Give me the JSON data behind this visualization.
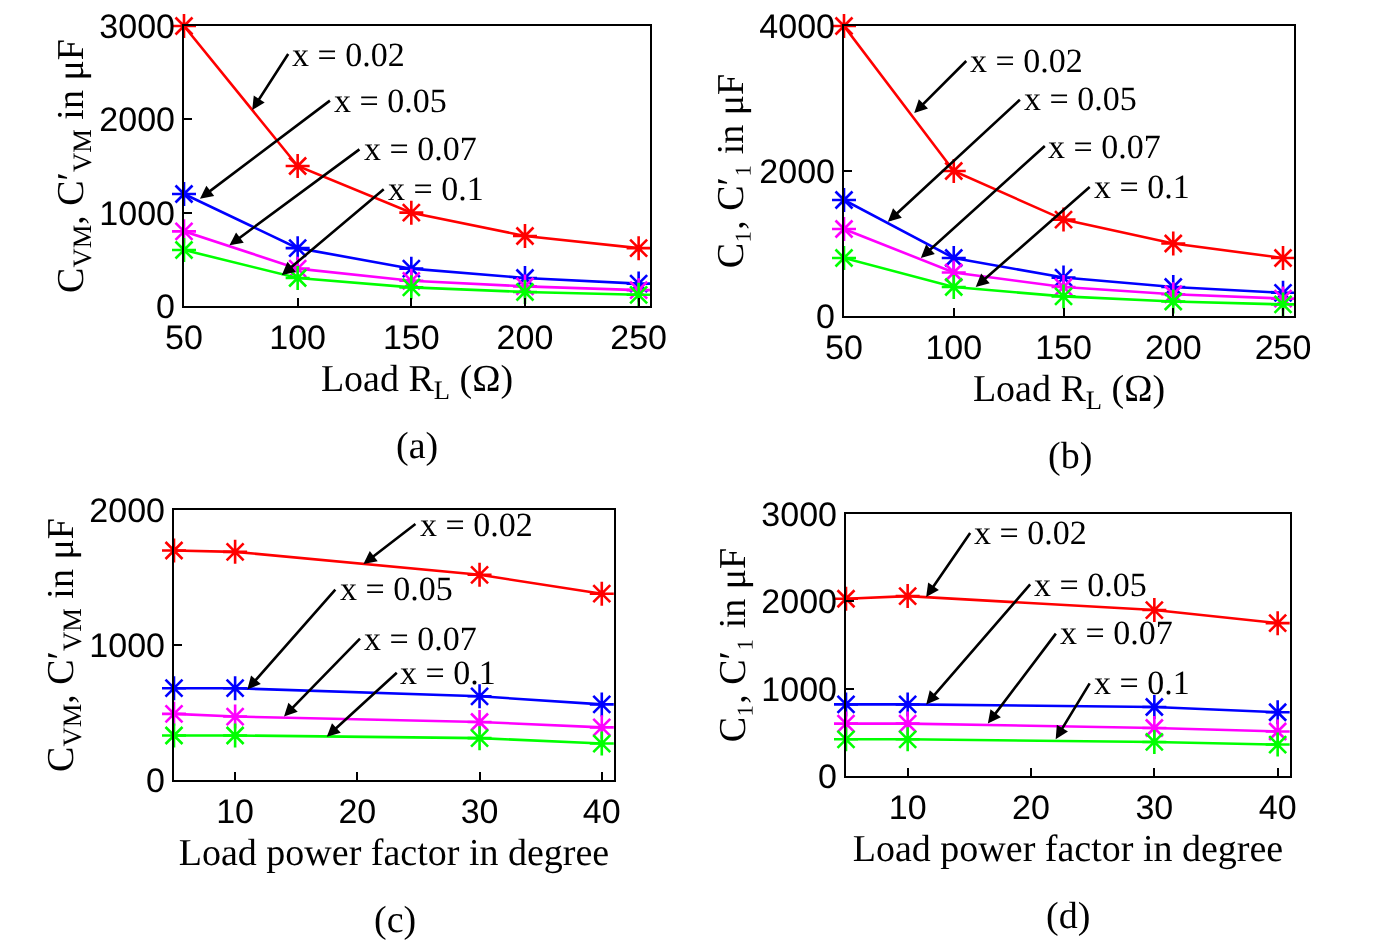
{
  "chart_data": [
    {
      "type": "line",
      "xlabel": "Load R$_{L}$ (Ω)",
      "ylabel": "C$_{VM}$, C′$_{VM}$ in μF",
      "x": [
        50,
        100,
        150,
        200,
        250
      ],
      "xlim": [
        50,
        255
      ],
      "xticks": [
        50,
        100,
        150,
        200,
        250
      ],
      "ylim": [
        0,
        3000
      ],
      "yticks": [
        0,
        1000,
        2000,
        3000
      ],
      "marker": "cross",
      "series": [
        {
          "color": "#ff0000",
          "values": [
            3000,
            1500,
            1000,
            750,
            620
          ]
        },
        {
          "color": "#0000ff",
          "values": [
            1200,
            620,
            400,
            300,
            240
          ]
        },
        {
          "color": "#ff00ff",
          "values": [
            800,
            400,
            270,
            210,
            170
          ]
        },
        {
          "color": "#00ff00",
          "values": [
            600,
            300,
            200,
            150,
            120
          ]
        }
      ],
      "annotations": [
        {
          "text": "x = 0.02",
          "x": 80,
          "y": 2100
        },
        {
          "text": "x = 0.05",
          "x": 57,
          "y": 1150
        },
        {
          "text": "x = 0.07",
          "x": 70,
          "y": 650
        },
        {
          "text": "x = 0.1",
          "x": 93,
          "y": 330
        },
        "(a)"
      ]
    },
    {
      "type": "line",
      "xlabel": "Load R$_{L}$ (Ω)",
      "ylabel": "C₁, C′₁ in μF",
      "x": [
        50,
        100,
        150,
        200,
        250
      ],
      "xlim": [
        50,
        255
      ],
      "xticks": [
        50,
        100,
        150,
        200,
        250
      ],
      "ylim": [
        0,
        4000
      ],
      "yticks": [
        0,
        2000,
        4000
      ],
      "marker": "cross",
      "series": [
        {
          "color": "#ff0000",
          "values": [
            4000,
            2000,
            1330,
            1000,
            800
          ]
        },
        {
          "color": "#0000ff",
          "values": [
            1600,
            800,
            530,
            400,
            320
          ]
        },
        {
          "color": "#ff00ff",
          "values": [
            1200,
            600,
            400,
            300,
            240
          ]
        },
        {
          "color": "#00ff00",
          "values": [
            800,
            400,
            270,
            200,
            160
          ]
        }
      ],
      "annotations": [
        {
          "text": "x = 0.02",
          "x": 82,
          "y": 2800
        },
        {
          "text": "x = 0.05",
          "x": 70,
          "y": 1300
        },
        {
          "text": "x = 0.07",
          "x": 85,
          "y": 800
        },
        {
          "text": "x = 0.1",
          "x": 110,
          "y": 400
        },
        "(b)"
      ]
    },
    {
      "type": "line",
      "xlabel": "Load power factor in degree",
      "ylabel": "C$_{VM}$, C′$_{VM}$ in μF",
      "x": [
        5,
        10,
        30,
        40
      ],
      "xlim": [
        5,
        41
      ],
      "xticks": [
        10,
        20,
        30,
        40
      ],
      "ylim": [
        0,
        2000
      ],
      "yticks": [
        0,
        1000,
        2000
      ],
      "marker": "cross",
      "series": [
        {
          "color": "#ff0000",
          "values": [
            1700,
            1690,
            1520,
            1380
          ]
        },
        {
          "color": "#0000ff",
          "values": [
            680,
            680,
            620,
            560
          ]
        },
        {
          "color": "#ff00ff",
          "values": [
            490,
            470,
            430,
            390
          ]
        },
        {
          "color": "#00ff00",
          "values": [
            330,
            330,
            310,
            270
          ]
        }
      ],
      "annotations": [
        {
          "text": "x = 0.02",
          "x": 20.5,
          "y": 1600
        },
        {
          "text": "x = 0.05",
          "x": 11,
          "y": 670
        },
        {
          "text": "x = 0.07",
          "x": 14,
          "y": 470
        },
        {
          "text": "x = 0.1",
          "x": 17.5,
          "y": 320
        },
        "(c)"
      ]
    },
    {
      "type": "line",
      "xlabel": "Load power factor in degree",
      "ylabel": "C₁, C′₁ in μF",
      "x": [
        5,
        10,
        30,
        40
      ],
      "xlim": [
        5,
        41
      ],
      "xticks": [
        10,
        20,
        30,
        40
      ],
      "ylim": [
        0,
        3000
      ],
      "yticks": [
        0,
        1000,
        2000,
        3000
      ],
      "marker": "cross",
      "series": [
        {
          "color": "#ff0000",
          "values": [
            2030,
            2060,
            1900,
            1750
          ]
        },
        {
          "color": "#0000ff",
          "values": [
            820,
            820,
            790,
            730
          ]
        },
        {
          "color": "#ff00ff",
          "values": [
            600,
            600,
            550,
            510
          ]
        },
        {
          "color": "#00ff00",
          "values": [
            420,
            420,
            390,
            360
          ]
        }
      ],
      "annotations": [
        {
          "text": "x = 0.02",
          "x": 11.5,
          "y": 2050
        },
        {
          "text": "x = 0.05",
          "x": 11.5,
          "y": 820
        },
        {
          "text": "x = 0.07",
          "x": 16.5,
          "y": 600
        },
        {
          "text": "x = 0.1",
          "x": 22,
          "y": 420
        },
        "(d)"
      ]
    }
  ]
}
